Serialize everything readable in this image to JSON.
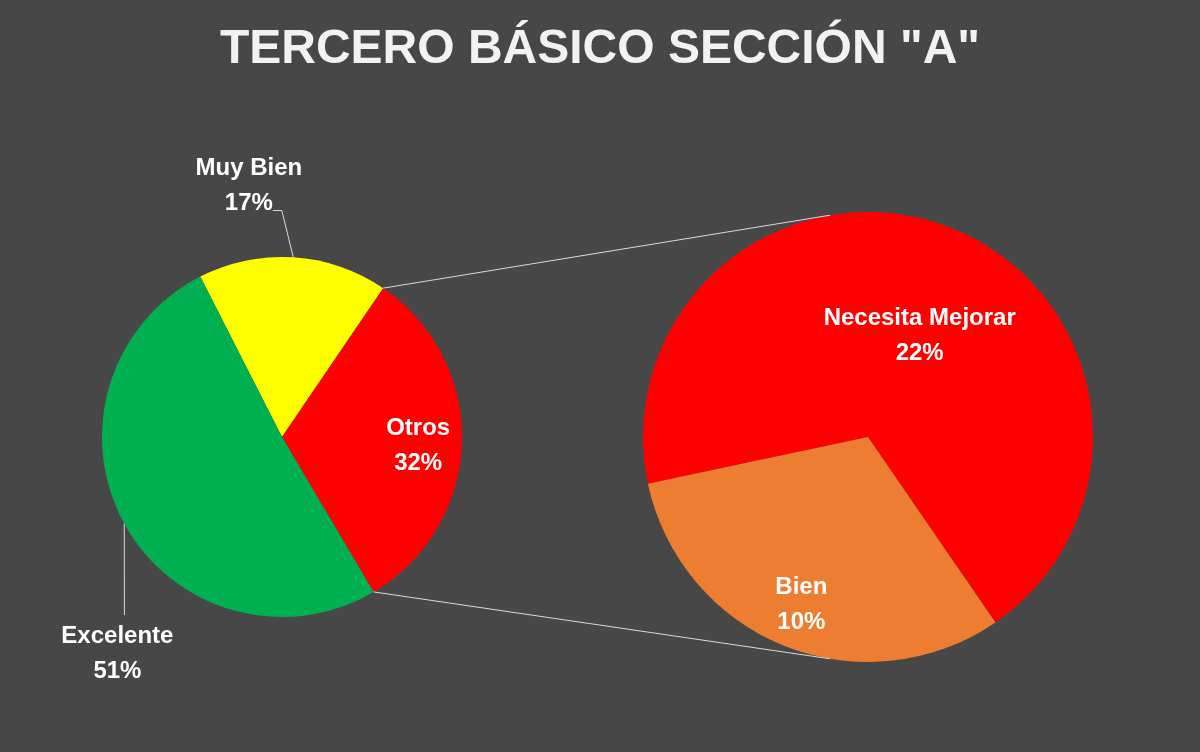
{
  "chart_data": [
    {
      "type": "pie",
      "title": "TERCERO BÁSICO SECCIÓN \"A\"",
      "categories": [
        "Muy Bien",
        "Otros",
        "Excelente"
      ],
      "values": [
        17,
        32,
        51
      ],
      "colors": [
        "#ffff00",
        "#ff0000",
        "#00b050"
      ],
      "value_labels": [
        "17%",
        "32%",
        "51%"
      ]
    },
    {
      "type": "pie",
      "categories": [
        "Necesita Mejorar",
        "Bien"
      ],
      "values": [
        22,
        10
      ],
      "colors": [
        "#ff0000",
        "#ed7d31"
      ],
      "value_labels": [
        "22%",
        "10%"
      ]
    }
  ]
}
